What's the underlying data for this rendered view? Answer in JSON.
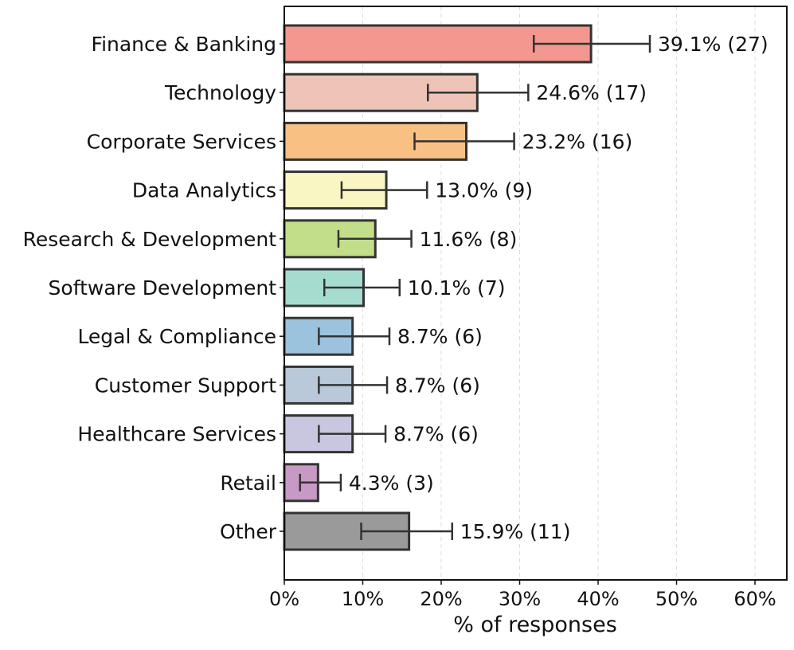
{
  "chart_data": {
    "type": "bar",
    "orientation": "horizontal",
    "title": "",
    "xlabel": "% of responses",
    "ylabel": "",
    "xlim": [
      0,
      64
    ],
    "xticks": [
      0,
      10,
      20,
      30,
      40,
      50,
      60
    ],
    "xtick_labels": [
      "0%",
      "10%",
      "20%",
      "30%",
      "40%",
      "50%",
      "60%"
    ],
    "grid": "vertical dashed",
    "categories": [
      "Finance & Banking",
      "Technology",
      "Corporate Services",
      "Data Analytics",
      "Research & Development",
      "Software Development",
      "Legal & Compliance",
      "Customer Support",
      "Healthcare Services",
      "Retail",
      "Other"
    ],
    "values": [
      39.1,
      24.6,
      23.2,
      13.0,
      11.6,
      10.1,
      8.7,
      8.7,
      8.7,
      4.3,
      15.9
    ],
    "error_low": [
      31.8,
      18.3,
      16.6,
      7.3,
      6.9,
      5.1,
      4.4,
      4.4,
      4.4,
      2.0,
      9.8
    ],
    "error_high": [
      46.6,
      31.1,
      29.3,
      18.2,
      16.2,
      14.7,
      13.4,
      13.1,
      12.9,
      7.2,
      21.4
    ],
    "data_labels": [
      "39.1% (27)",
      "24.6% (17)",
      "23.2% (16)",
      "13.0% (9)",
      "11.6% (8)",
      "10.1% (7)",
      "8.7% (6)",
      "8.7% (6)",
      "8.7% (6)",
      "4.3% (3)",
      "15.9% (11)"
    ],
    "colors": [
      "#f4978e",
      "#eec4b8",
      "#f9c084",
      "#f9f6c4",
      "#c2de8a",
      "#a6dcd0",
      "#9bc3de",
      "#b9c9d9",
      "#c9c7e0",
      "#c79ac6",
      "#9a9a9a"
    ]
  }
}
